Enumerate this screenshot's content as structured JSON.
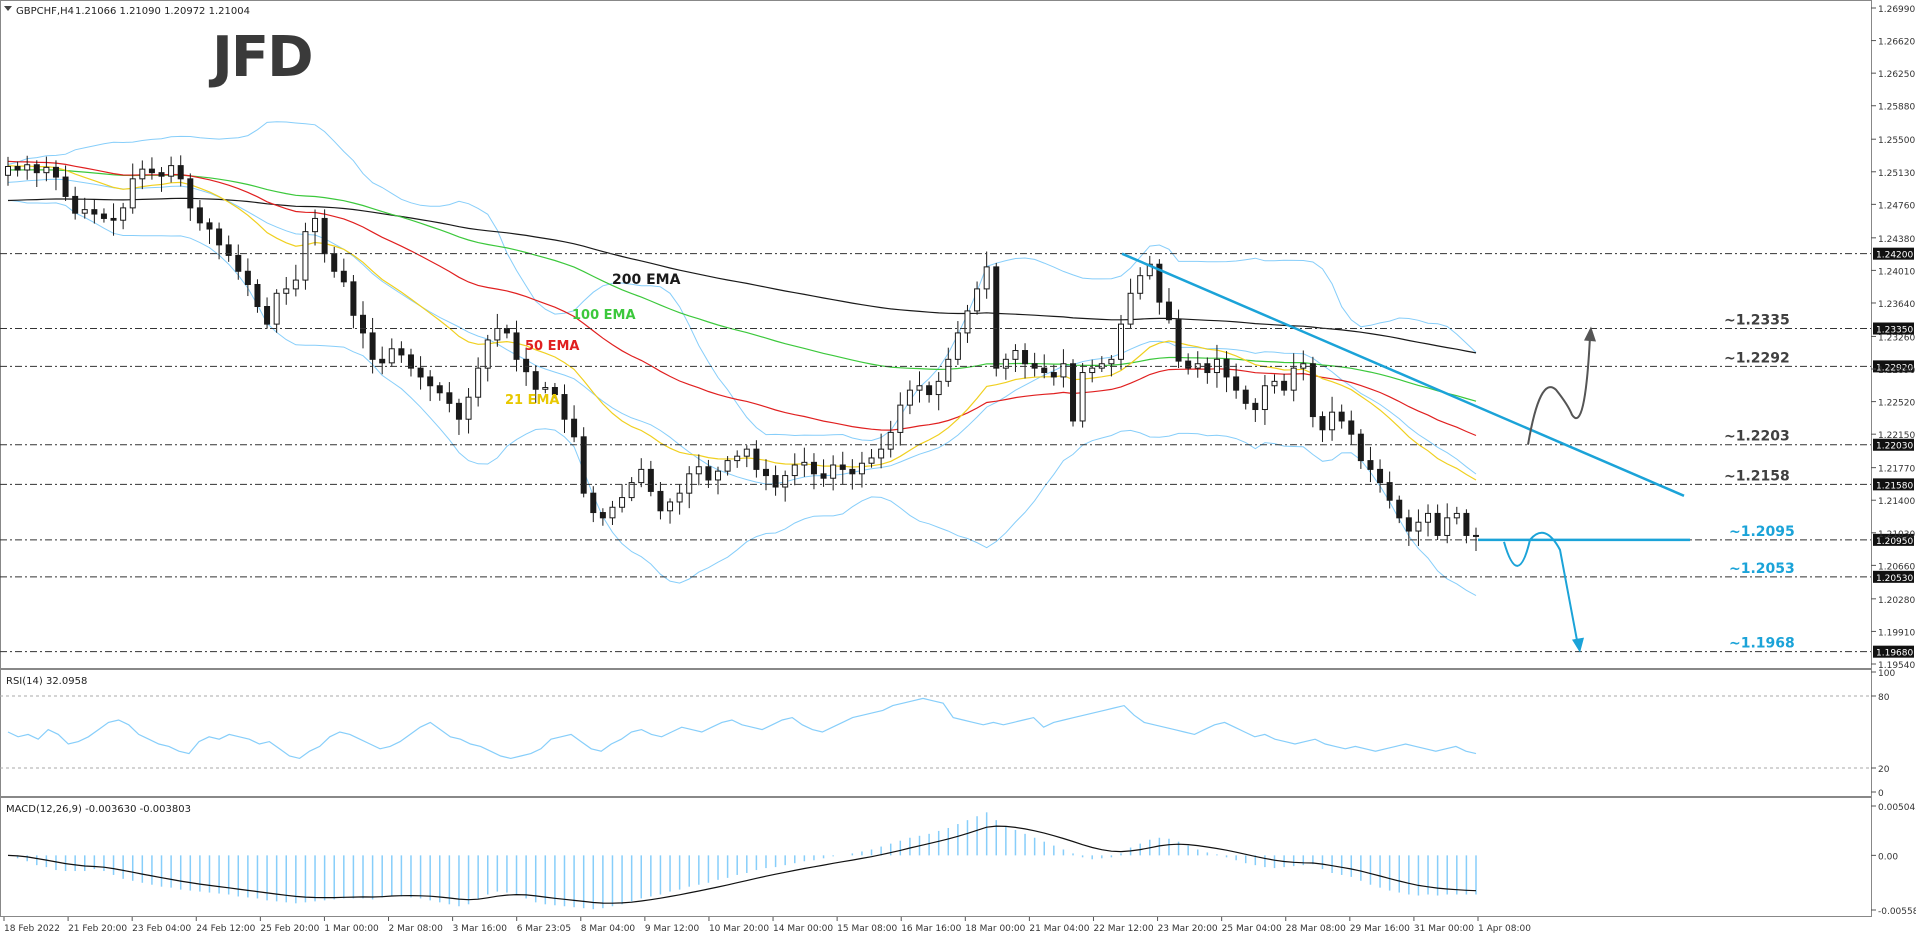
{
  "window": {
    "title": "GBPCHF,H4",
    "ohlc": "1.21066 1.21090 1.20972 1.21004"
  },
  "brand": {
    "logo": "JFD"
  },
  "colors": {
    "candle": "#1a1a1a",
    "bollinger": "#87cefa",
    "ema200": "#1a1a1a",
    "ema100": "#3cc83c",
    "ema50": "#e02020",
    "ema21": "#f0d020",
    "trendline": "#1ba3d8",
    "bear_path": "#1ba3d8",
    "bull_path": "#555555",
    "label_dark": "#404040",
    "label_cyan": "#1ba3d8"
  },
  "chart_data": [
    {
      "type": "candlestick",
      "symbol": "GBPCHF",
      "timeframe": "H4",
      "ylim": [
        1.1954,
        1.2699
      ],
      "price_ticks": [
        "1.26990",
        "1.26620",
        "1.26250",
        "1.25880",
        "1.25500",
        "1.25130",
        "1.24760",
        "1.24380",
        "1.24010",
        "1.23640",
        "1.23260",
        "1.22890",
        "1.22520",
        "1.22150",
        "1.21770",
        "1.21400",
        "1.21030",
        "1.20660",
        "1.20280",
        "1.19910",
        "1.19540"
      ],
      "x_labels": [
        "18 Feb 2022",
        "21 Feb 20:00",
        "23 Feb 04:00",
        "24 Feb 12:00",
        "25 Feb 20:00",
        "1 Mar 00:00",
        "2 Mar 08:00",
        "3 Mar 16:00",
        "6 Mar 23:05",
        "8 Mar 04:00",
        "9 Mar 12:00",
        "10 Mar 20:00",
        "14 Mar 00:00",
        "15 Mar 08:00",
        "16 Mar 16:00",
        "18 Mar 00:00",
        "21 Mar 04:00",
        "22 Mar 12:00",
        "23 Mar 20:00",
        "25 Mar 04:00",
        "28 Mar 08:00",
        "29 Mar 16:00",
        "31 Mar 00:00",
        "1 Apr 08:00"
      ],
      "levels": [
        {
          "value": 1.242,
          "tag": "1.24200",
          "label": ""
        },
        {
          "value": 1.2335,
          "tag": "1.23350",
          "label": "~1.2335"
        },
        {
          "value": 1.2292,
          "tag": "1.22920",
          "label": "~1.2292"
        },
        {
          "value": 1.2203,
          "tag": "1.22030",
          "label": "~1.2203"
        },
        {
          "value": 1.2158,
          "tag": "1.21580",
          "label": "~1.2158"
        },
        {
          "value": 1.2095,
          "tag": "1.20950",
          "label": "~1.2095"
        },
        {
          "value": 1.2053,
          "tag": "1.20530",
          "label": "~1.2053"
        },
        {
          "value": 1.1968,
          "tag": "1.19680",
          "label": "~1.1968"
        }
      ],
      "ema_labels": [
        "200 EMA",
        "100 EMA",
        "50 EMA",
        "21 EMA"
      ],
      "candles_close": [
        1.2519,
        1.2515,
        1.2521,
        1.2512,
        1.2518,
        1.2507,
        1.2485,
        1.2466,
        1.247,
        1.2465,
        1.246,
        1.2458,
        1.2472,
        1.2505,
        1.2516,
        1.2512,
        1.2508,
        1.252,
        1.2505,
        1.2472,
        1.2455,
        1.2448,
        1.243,
        1.2418,
        1.24,
        1.2385,
        1.236,
        1.234,
        1.2375,
        1.238,
        1.239,
        1.2445,
        1.246,
        1.242,
        1.24,
        1.2388,
        1.235,
        1.233,
        1.23,
        1.2296,
        1.2312,
        1.2305,
        1.229,
        1.228,
        1.227,
        1.2262,
        1.225,
        1.2232,
        1.2257,
        1.229,
        1.2322,
        1.2335,
        1.233,
        1.23,
        1.2286,
        1.2266,
        1.2268,
        1.226,
        1.2232,
        1.2212,
        1.2148,
        1.2126,
        1.212,
        1.2132,
        1.2143,
        1.216,
        1.2175,
        1.215,
        1.2128,
        1.2138,
        1.2148,
        1.217,
        1.2178,
        1.2163,
        1.2173,
        1.2185,
        1.219,
        1.2198,
        1.2175,
        1.2168,
        1.2155,
        1.2168,
        1.218,
        1.2183,
        1.217,
        1.2165,
        1.218,
        1.2175,
        1.217,
        1.2182,
        1.2188,
        1.2198,
        1.2217,
        1.2248,
        1.2265,
        1.227,
        1.226,
        1.2275,
        1.23,
        1.233,
        1.2355,
        1.238,
        1.2405,
        1.229,
        1.23,
        1.231,
        1.2295,
        1.229,
        1.2285,
        1.228,
        1.2295,
        1.223,
        1.2285,
        1.229,
        1.2295,
        1.23,
        1.234,
        1.2375,
        1.2395,
        1.2408,
        1.2365,
        1.2345,
        1.2298,
        1.229,
        1.2295,
        1.2285,
        1.23,
        1.228,
        1.2265,
        1.225,
        1.2243,
        1.227,
        1.2275,
        1.2265,
        1.229,
        1.2295,
        1.2235,
        1.222,
        1.224,
        1.223,
        1.2215,
        1.2185,
        1.2175,
        1.216,
        1.214,
        1.212,
        1.2105,
        1.2115,
        1.2125,
        1.21,
        1.212,
        1.2125,
        1.21,
        1.21
      ],
      "macd_hist": [
        0,
        -0.0003,
        -0.0006,
        -0.001,
        -0.0012,
        -0.0015,
        -0.0016,
        -0.0016,
        -0.0016,
        -0.0014,
        -0.0016,
        -0.002,
        -0.0024,
        -0.0026,
        -0.0028,
        -0.003,
        -0.0032,
        -0.0033,
        -0.0035,
        -0.0036,
        -0.0037,
        -0.0038,
        -0.0039,
        -0.004,
        -0.0042,
        -0.0043,
        -0.0044,
        -0.0046,
        -0.0047,
        -0.0048,
        -0.0049,
        -0.0048,
        -0.0047,
        -0.0046,
        -0.0045,
        -0.0044,
        -0.0044,
        -0.0044,
        -0.0045,
        -0.0043,
        -0.0041,
        -0.0042,
        -0.0043,
        -0.0044,
        -0.0046,
        -0.0048,
        -0.005,
        -0.0052,
        -0.005,
        -0.0045,
        -0.004,
        -0.0037,
        -0.0038,
        -0.004,
        -0.0044,
        -0.0048,
        -0.005,
        -0.0051,
        -0.0052,
        -0.0053,
        -0.0054,
        -0.0055,
        -0.0054,
        -0.0052,
        -0.005,
        -0.0047,
        -0.0044,
        -0.0042,
        -0.004,
        -0.0037,
        -0.0035,
        -0.0032,
        -0.003,
        -0.0028,
        -0.0025,
        -0.0023,
        -0.002,
        -0.0018,
        -0.0015,
        -0.0013,
        -0.0012,
        -0.001,
        -0.0008,
        -0.0006,
        -0.0005,
        -0.0003,
        -0.0001,
        0.0,
        0.0002,
        0.0004,
        0.0006,
        0.0009,
        0.0012,
        0.0015,
        0.0018,
        0.002,
        0.0022,
        0.0025,
        0.0028,
        0.0032,
        0.0036,
        0.004,
        0.0044,
        0.0036,
        0.003,
        0.0026,
        0.0022,
        0.0018,
        0.0014,
        0.001,
        0.0006,
        0.0002,
        -0.0002,
        -0.0004,
        -0.0003,
        -0.0002,
        0.0002,
        0.0008,
        0.0012,
        0.0016,
        0.0018,
        0.0017,
        0.0014,
        0.001,
        0.0006,
        0.0003,
        0.0001,
        -0.0002,
        -0.0005,
        -0.0008,
        -0.001,
        -0.0012,
        -0.0013,
        -0.0012,
        -0.0011,
        -0.001,
        -0.0009,
        -0.0014,
        -0.0018,
        -0.002,
        -0.0022,
        -0.0026,
        -0.003,
        -0.0033,
        -0.0036,
        -0.0038,
        -0.004,
        -0.0041,
        -0.004,
        -0.0041,
        -0.004,
        -0.004,
        -0.004,
        -0.004
      ],
      "macd_range": [
        -0.005583,
        0.005045
      ]
    },
    {
      "type": "line",
      "name": "RSI(14)",
      "header": "RSI(14) 32.0958",
      "ylim": [
        0,
        100
      ],
      "ticks": [
        "100",
        "80",
        "20",
        "0"
      ],
      "values": [
        50,
        46,
        48,
        44,
        52,
        48,
        40,
        42,
        46,
        52,
        58,
        60,
        56,
        48,
        44,
        40,
        38,
        34,
        32,
        42,
        46,
        44,
        48,
        46,
        44,
        40,
        42,
        36,
        30,
        28,
        34,
        38,
        46,
        50,
        48,
        44,
        40,
        36,
        38,
        42,
        48,
        54,
        58,
        52,
        46,
        44,
        40,
        38,
        34,
        30,
        28,
        30,
        32,
        36,
        44,
        46,
        48,
        42,
        36,
        34,
        40,
        44,
        50,
        52,
        48,
        46,
        50,
        54,
        52,
        50,
        54,
        58,
        60,
        56,
        54,
        52,
        56,
        60,
        62,
        56,
        52,
        50,
        54,
        58,
        62,
        64,
        66,
        68,
        72,
        74,
        76,
        78,
        76,
        74,
        62,
        60,
        58,
        56,
        58,
        56,
        58,
        60,
        62,
        54,
        58,
        60,
        62,
        64,
        66,
        68,
        70,
        72,
        64,
        58,
        56,
        54,
        52,
        50,
        48,
        52,
        56,
        58,
        54,
        50,
        46,
        48,
        44,
        42,
        40,
        42,
        44,
        40,
        38,
        36,
        38,
        36,
        34,
        36,
        38,
        40,
        38,
        36,
        34,
        36,
        38,
        34,
        32
      ],
      "levels": [
        80,
        20
      ]
    },
    {
      "type": "bar",
      "name": "MACD(12,26,9)",
      "header": "MACD(12,26,9) -0.003630 -0.003803",
      "ticks": [
        "0.005045",
        "0.00",
        "-0.005583"
      ]
    }
  ]
}
